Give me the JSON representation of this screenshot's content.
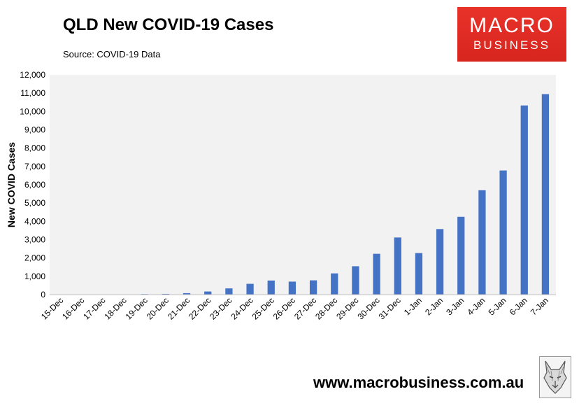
{
  "header": {
    "title": "QLD New COVID-19 Cases",
    "subtitle": "Source: COVID-19 Data"
  },
  "logo": {
    "line1": "MACRO",
    "line2": "BUSINESS",
    "color": "#e0291f",
    "text": "MACRO BUSINESS"
  },
  "footer": {
    "website": "www.macrobusiness.com.au",
    "emblem_icon": "wolf-logo-icon"
  },
  "colors": {
    "bar": "#4472c4",
    "plot_bg": "#f2f2f2",
    "axis": "#bfbfbf"
  },
  "chart_data": {
    "type": "bar",
    "title": "QLD New COVID-19 Cases",
    "subtitle": "Source: COVID-19 Data",
    "xlabel": "",
    "ylabel": "New COVID Cases",
    "ylim": [
      0,
      12000
    ],
    "yticks": [
      0,
      1000,
      2000,
      3000,
      4000,
      5000,
      6000,
      7000,
      8000,
      9000,
      10000,
      11000,
      12000
    ],
    "grid": false,
    "legend": "none",
    "categories": [
      "15-Dec",
      "16-Dec",
      "17-Dec",
      "18-Dec",
      "19-Dec",
      "20-Dec",
      "21-Dec",
      "22-Dec",
      "23-Dec",
      "24-Dec",
      "25-Dec",
      "26-Dec",
      "27-Dec",
      "28-Dec",
      "29-Dec",
      "30-Dec",
      "31-Dec",
      "1-Jan",
      "2-Jan",
      "3-Jan",
      "4-Jan",
      "5-Jan",
      "6-Jan",
      "7-Jan"
    ],
    "values": [
      3,
      5,
      5,
      10,
      30,
      40,
      80,
      170,
      340,
      590,
      770,
      710,
      780,
      1160,
      1550,
      2230,
      3120,
      2270,
      3580,
      4250,
      5700,
      6780,
      10330,
      10950
    ]
  }
}
